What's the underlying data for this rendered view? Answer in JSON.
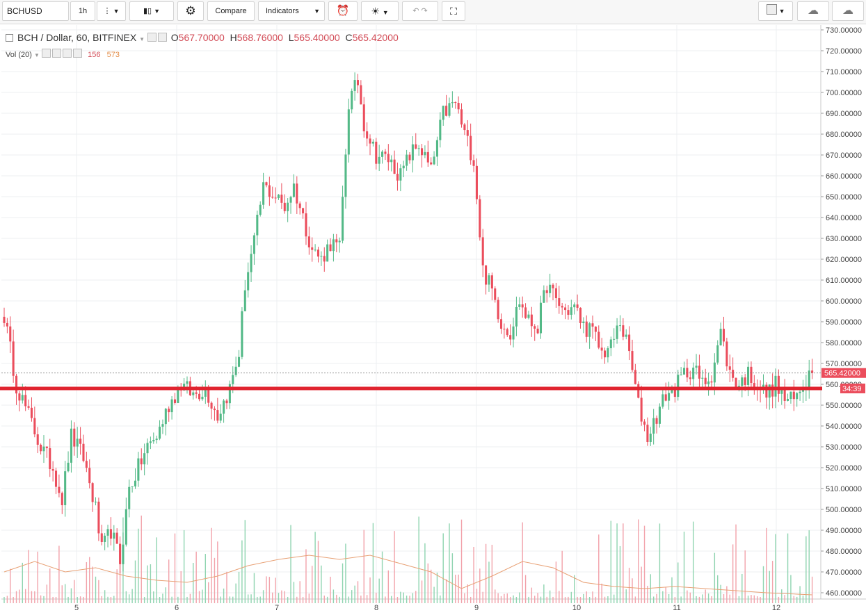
{
  "toolbar": {
    "symbol": "BCHUSD",
    "interval": "1h",
    "compare_label": "Compare",
    "indicators_label": "Indicators"
  },
  "legend": {
    "series_title": "BCH / Dollar, 60, BITFINEX",
    "o_label": "O",
    "o_value": "567.70000",
    "h_label": "H",
    "h_value": "568.76000",
    "l_label": "L",
    "l_value": "565.40000",
    "c_label": "C",
    "c_value": "565.42000",
    "vol_label": "Vol (20)",
    "vol_value": "156",
    "vol_ma_value": "573"
  },
  "price_badge": {
    "value": "565.42000",
    "countdown": "34:39"
  },
  "colors": {
    "up": "#53b987",
    "down": "#eb4d5c",
    "support": "#e0242f",
    "vol_ma": "#e8a074"
  },
  "chart_data": {
    "type": "candlestick",
    "ylim": [
      455,
      733
    ],
    "y_ticks": [
      "730.00000",
      "720.00000",
      "710.00000",
      "700.00000",
      "690.00000",
      "680.00000",
      "670.00000",
      "660.00000",
      "650.00000",
      "640.00000",
      "630.00000",
      "620.00000",
      "610.00000",
      "600.00000",
      "590.00000",
      "580.00000",
      "570.00000",
      "560.00000",
      "550.00000",
      "540.00000",
      "530.00000",
      "520.00000",
      "510.00000",
      "500.00000",
      "490.00000",
      "480.00000",
      "470.00000",
      "460.00000"
    ],
    "x_ticks": [
      "5",
      "6",
      "7",
      "8",
      "9",
      "10",
      "11",
      "12"
    ],
    "support_level": 558,
    "last_price": 565.42,
    "waypoints": [
      [
        0,
        593
      ],
      [
        4,
        560
      ],
      [
        8,
        545
      ],
      [
        12,
        530
      ],
      [
        16,
        520
      ],
      [
        19,
        505
      ],
      [
        22,
        535
      ],
      [
        26,
        525
      ],
      [
        30,
        500
      ],
      [
        32,
        480
      ],
      [
        35,
        490
      ],
      [
        38,
        475
      ],
      [
        41,
        510
      ],
      [
        44,
        520
      ],
      [
        47,
        530
      ],
      [
        50,
        535
      ],
      [
        54,
        550
      ],
      [
        58,
        560
      ],
      [
        62,
        555
      ],
      [
        66,
        558
      ],
      [
        70,
        545
      ],
      [
        74,
        558
      ],
      [
        77,
        575
      ],
      [
        79,
        608
      ],
      [
        82,
        628
      ],
      [
        85,
        655
      ],
      [
        89,
        650
      ],
      [
        92,
        645
      ],
      [
        95,
        655
      ],
      [
        98,
        640
      ],
      [
        101,
        625
      ],
      [
        104,
        620
      ],
      [
        107,
        628
      ],
      [
        110,
        625
      ],
      [
        113,
        695
      ],
      [
        116,
        705
      ],
      [
        118,
        685
      ],
      [
        122,
        670
      ],
      [
        126,
        668
      ],
      [
        130,
        660
      ],
      [
        133,
        670
      ],
      [
        136,
        675
      ],
      [
        140,
        662
      ],
      [
        144,
        690
      ],
      [
        148,
        695
      ],
      [
        151,
        680
      ],
      [
        154,
        668
      ],
      [
        157,
        615
      ],
      [
        160,
        605
      ],
      [
        163,
        590
      ],
      [
        166,
        585
      ],
      [
        169,
        600
      ],
      [
        172,
        590
      ],
      [
        175,
        588
      ],
      [
        178,
        608
      ],
      [
        181,
        600
      ],
      [
        184,
        595
      ],
      [
        187,
        597
      ],
      [
        190,
        588
      ],
      [
        193,
        585
      ],
      [
        196,
        575
      ],
      [
        199,
        578
      ],
      [
        202,
        590
      ],
      [
        205,
        575
      ],
      [
        208,
        550
      ],
      [
        211,
        535
      ],
      [
        214,
        545
      ],
      [
        217,
        555
      ],
      [
        220,
        558
      ],
      [
        223,
        565
      ],
      [
        226,
        568
      ],
      [
        229,
        560
      ],
      [
        232,
        565
      ],
      [
        235,
        585
      ],
      [
        238,
        565
      ],
      [
        241,
        560
      ],
      [
        244,
        565
      ],
      [
        247,
        560
      ],
      [
        250,
        555
      ],
      [
        253,
        560
      ],
      [
        256,
        553
      ],
      [
        259,
        552
      ],
      [
        262,
        560
      ],
      [
        265,
        568
      ]
    ],
    "n_candles": 266,
    "volume_ma": [
      [
        0,
        470
      ],
      [
        10,
        475
      ],
      [
        20,
        470
      ],
      [
        30,
        472
      ],
      [
        40,
        468
      ],
      [
        50,
        466
      ],
      [
        60,
        465
      ],
      [
        70,
        468
      ],
      [
        80,
        473
      ],
      [
        90,
        476
      ],
      [
        100,
        478
      ],
      [
        110,
        476
      ],
      [
        120,
        478
      ],
      [
        130,
        474
      ],
      [
        140,
        470
      ],
      [
        150,
        462
      ],
      [
        160,
        468
      ],
      [
        170,
        475
      ],
      [
        180,
        472
      ],
      [
        190,
        465
      ],
      [
        200,
        463
      ],
      [
        210,
        462
      ],
      [
        220,
        463
      ],
      [
        230,
        462
      ],
      [
        240,
        461
      ],
      [
        250,
        460
      ],
      [
        265,
        459
      ]
    ]
  }
}
